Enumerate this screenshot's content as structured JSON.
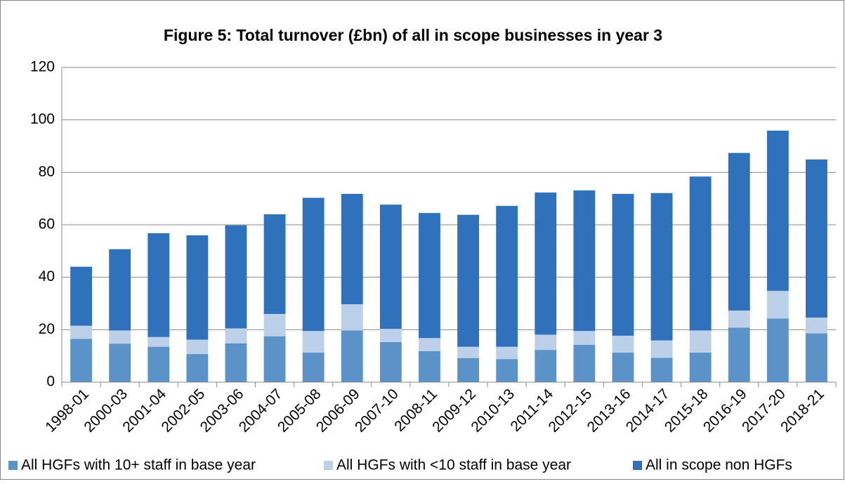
{
  "chart_data": {
    "type": "stacked_bar",
    "title": "Figure 5: Total turnover (£bn) of all in scope businesses in year 3",
    "categories": [
      "1998-01",
      "2000-03",
      "2001-04",
      "2002-05",
      "2003-06",
      "2004-07",
      "2005-08",
      "2006-09",
      "2007-10",
      "2008-11",
      "2009-12",
      "2010-13",
      "2011-14",
      "2012-15",
      "2013-16",
      "2014-17",
      "2015-18",
      "2016-19",
      "2017-20",
      "2018-21"
    ],
    "series": [
      {
        "name": "All HGFs with 10+ staff in base year",
        "color": "#5b93c9",
        "values": [
          16.5,
          14.7,
          13.5,
          10.7,
          14.8,
          17.5,
          11.3,
          19.7,
          15.3,
          11.8,
          9.2,
          8.8,
          12.3,
          14.2,
          11.3,
          9.3,
          11.3,
          20.8,
          24.3,
          18.6
        ]
      },
      {
        "name": "All HGFs with <10 staff in base year",
        "color": "#bcd0ea",
        "values": [
          5,
          5,
          3.7,
          5.5,
          5.7,
          8.5,
          8.2,
          10,
          5,
          5,
          4.3,
          4.7,
          5.8,
          5.3,
          6.4,
          6.6,
          8.4,
          6.5,
          10.5,
          6
        ]
      },
      {
        "name": "All in scope non HGFs",
        "color": "#2f71bb",
        "values": [
          22.5,
          31,
          39.6,
          39.8,
          39.3,
          38,
          50.8,
          42.1,
          47.4,
          47.7,
          50.3,
          53.7,
          54.2,
          53.6,
          54.1,
          56.2,
          58.7,
          60.1,
          61.1,
          60.3
        ]
      }
    ],
    "ylim": [
      0,
      120
    ],
    "yticks": [
      0,
      20,
      40,
      60,
      80,
      100,
      120
    ],
    "grid": true,
    "legend": "bottom"
  }
}
